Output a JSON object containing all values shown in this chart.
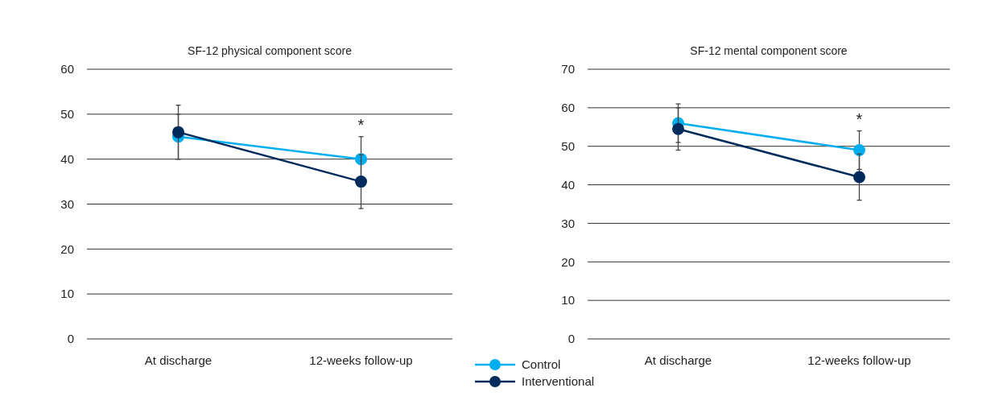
{
  "chart_data": [
    {
      "type": "line",
      "title": "SF-12 physical component score",
      "categories": [
        "At discharge",
        "12-weeks follow-up"
      ],
      "ylim": [
        0,
        60
      ],
      "yticks": [
        0,
        10,
        20,
        30,
        40,
        50,
        60
      ],
      "grid": "y",
      "marker": "circle",
      "legend": "bottom right",
      "annotations": [
        "*"
      ],
      "series": [
        {
          "name": "Control",
          "color": "#00aeef",
          "values": [
            45,
            40
          ],
          "errors": [
            5,
            5
          ]
        },
        {
          "name": "Interventional",
          "color": "#002b5c",
          "values": [
            46,
            35
          ],
          "errors": [
            6,
            6
          ]
        }
      ]
    },
    {
      "type": "line",
      "title": "SF-12 mental component score",
      "categories": [
        "At discharge",
        "12-weeks follow-up"
      ],
      "ylim": [
        0,
        70
      ],
      "yticks": [
        0,
        10,
        20,
        30,
        40,
        50,
        60,
        70
      ],
      "grid": "y",
      "marker": "circle",
      "annotations": [
        "*"
      ],
      "series": [
        {
          "color": "#00aeef",
          "values": [
            56,
            49
          ],
          "errors": [
            5,
            5
          ]
        },
        {
          "color": "#002b5c",
          "values": [
            54.5,
            42
          ],
          "errors": [
            5.5,
            6
          ]
        }
      ]
    }
  ]
}
